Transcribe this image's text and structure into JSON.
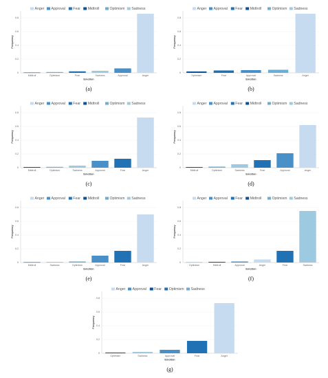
{
  "colors": {
    "Anger": "#c6dbef",
    "Approval": "#4a90c8",
    "Fear": "#2171b5",
    "Midtroll": "#08519c",
    "Optimism": "#6aaed6",
    "Sadness": "#9ecae1"
  },
  "chart_data": [
    {
      "type": "bar",
      "caption": "(a)",
      "legend": [
        "Anger",
        "Approval",
        "Fear",
        "Midtroll",
        "Optimism",
        "Sadness"
      ],
      "xlabel": "Emotion",
      "ylabel": "Frequency",
      "ylim": [
        0,
        0.9
      ],
      "yticks": [
        "0",
        "0.2",
        "0.4",
        "0.6",
        "0.8"
      ],
      "categories": [
        "Midtroll",
        "Optimism",
        "Fear",
        "Sadness",
        "Approval",
        "Anger"
      ],
      "values": [
        0.005,
        0.012,
        0.022,
        0.03,
        0.065,
        0.86
      ]
    },
    {
      "type": "bar",
      "caption": "(b)",
      "legend": [
        "Anger",
        "Approval",
        "Fear",
        "Midtroll",
        "Optimism",
        "Sadness"
      ],
      "xlabel": "Emotion",
      "ylabel": "Frequency",
      "ylim": [
        0,
        0.9
      ],
      "yticks": [
        "0",
        "0.2",
        "0.4",
        "0.6",
        "0.8"
      ],
      "categories": [
        "Optimism",
        "Fear",
        "Approval",
        "Sadness",
        "Anger"
      ],
      "bar_colors": [
        "Midtroll",
        "Fear",
        "Approval",
        "Optimism",
        "Anger"
      ],
      "values": [
        0.02,
        0.035,
        0.04,
        0.045,
        0.86
      ]
    },
    {
      "type": "bar",
      "caption": "(c)",
      "legend": [
        "Anger",
        "Approval",
        "Fear",
        "Midtroll",
        "Optimism",
        "Sadness"
      ],
      "xlabel": "Emotion",
      "ylabel": "Frequency",
      "ylim": [
        0,
        0.9
      ],
      "yticks": [
        "0",
        "0.2",
        "0.4",
        "0.6",
        "0.8"
      ],
      "categories": [
        "Midtroll",
        "Optimism",
        "Sadness",
        "Approval",
        "Fear",
        "Anger"
      ],
      "values": [
        0.01,
        0.012,
        0.03,
        0.1,
        0.13,
        0.73
      ]
    },
    {
      "type": "bar",
      "caption": "(d)",
      "legend": [
        "Anger",
        "Approval",
        "Fear",
        "Midtroll",
        "Optimism",
        "Sadness"
      ],
      "xlabel": "Emotion",
      "ylabel": "Frequency",
      "ylim": [
        0,
        0.9
      ],
      "yticks": [
        "0",
        "0.2",
        "0.4",
        "0.6",
        "0.8"
      ],
      "categories": [
        "Midtroll",
        "Optimism",
        "Sadness",
        "Fear",
        "Approval",
        "Anger"
      ],
      "values": [
        0.01,
        0.015,
        0.05,
        0.11,
        0.21,
        0.62
      ]
    },
    {
      "type": "bar",
      "caption": "(e)",
      "legend": [
        "Anger",
        "Approval",
        "Fear",
        "Midtroll",
        "Optimism",
        "Sadness"
      ],
      "xlabel": "Emotion",
      "ylabel": "Frequency",
      "ylim": [
        0,
        0.9
      ],
      "yticks": [
        "0",
        "0.2",
        "0.4",
        "0.6",
        "0.8"
      ],
      "categories": [
        "Midtroll",
        "Sadness",
        "Optimism",
        "Approval",
        "Fear",
        "Anger"
      ],
      "values": [
        0.005,
        0.01,
        0.015,
        0.1,
        0.17,
        0.7
      ]
    },
    {
      "type": "bar",
      "caption": "(f)",
      "legend": [
        "Anger",
        "Approval",
        "Fear",
        "Midtroll",
        "Optimism",
        "Sadness"
      ],
      "xlabel": "Emotion",
      "ylabel": "Frequency",
      "ylim": [
        0,
        0.9
      ],
      "yticks": [
        "0",
        "0.2",
        "0.4",
        "0.6",
        "0.8"
      ],
      "categories": [
        "Optimism",
        "Midtroll",
        "Approval",
        "Anger",
        "Fear",
        "Sadness"
      ],
      "values": [
        0.005,
        0.01,
        0.015,
        0.045,
        0.17,
        0.75
      ]
    },
    {
      "type": "bar",
      "caption": "(g)",
      "legend": [
        "Anger",
        "Approval",
        "Fear",
        "Optimism",
        "Sadness"
      ],
      "xlabel": "Emotion",
      "ylabel": "Frequency",
      "ylim": [
        0,
        0.9
      ],
      "yticks": [
        "0",
        "0.2",
        "0.4",
        "0.6",
        "0.8"
      ],
      "categories": [
        "Optimism",
        "Sadness",
        "Approval",
        "Fear",
        "Anger"
      ],
      "bar_colors": [
        "Midtroll",
        "Sadness",
        "Approval",
        "Fear",
        "Anger"
      ],
      "legend_colors": [
        "Anger",
        "Approval",
        "Midtroll",
        "Fear",
        "Optimism"
      ],
      "values": [
        0.01,
        0.02,
        0.05,
        0.18,
        0.73
      ]
    }
  ]
}
